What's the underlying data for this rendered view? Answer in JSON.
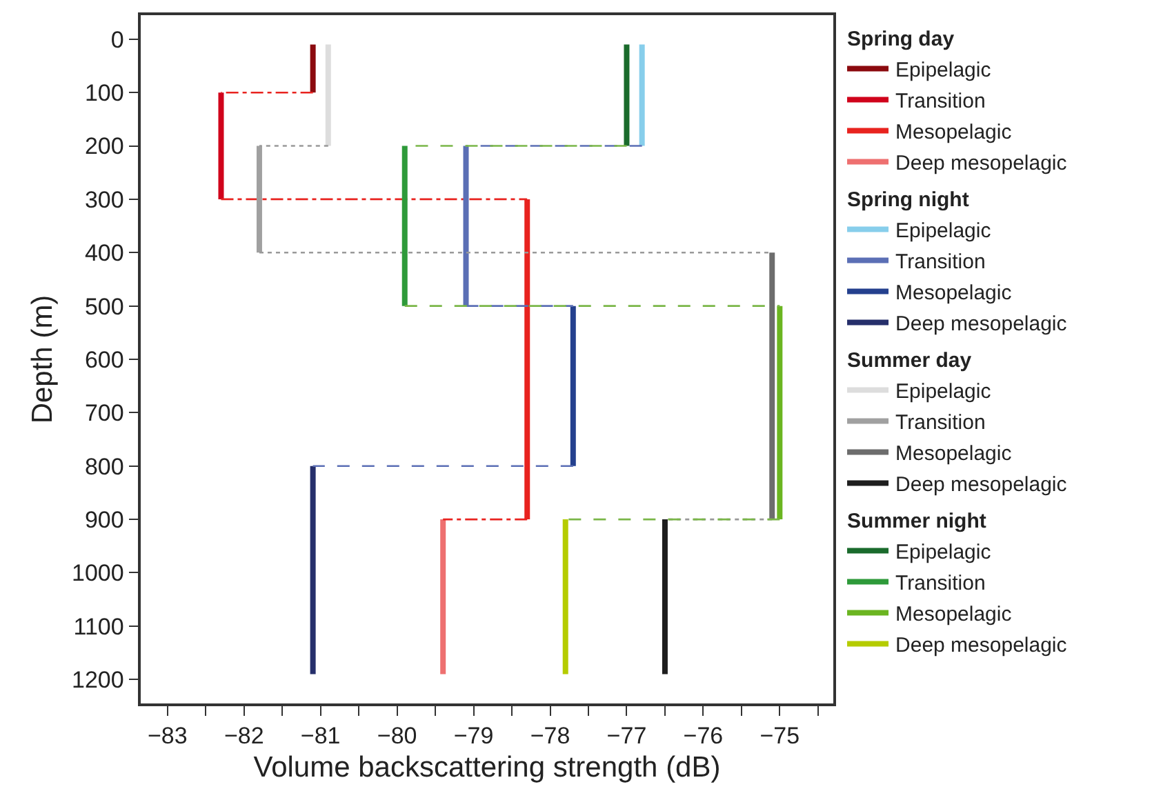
{
  "chart_data": {
    "type": "line",
    "xlabel": "Volume backscattering strength (dB)",
    "ylabel": "Depth (m)",
    "legend_title": [
      "Spring day",
      "Spring night",
      "Summer day",
      "Summer night"
    ],
    "legend": "right",
    "marker": "none",
    "xlim": [
      -83.35,
      -74.3
    ],
    "ylim": [
      1245,
      -45
    ],
    "xticks": [
      {
        "value": -83,
        "label": "−83"
      },
      {
        "value": -82.5,
        "label": null
      },
      {
        "value": -82,
        "label": "−82"
      },
      {
        "value": -81.5,
        "label": null
      },
      {
        "value": -81,
        "label": "−81"
      },
      {
        "value": -80.5,
        "label": null
      },
      {
        "value": -80,
        "label": "−80"
      },
      {
        "value": -79.5,
        "label": null
      },
      {
        "value": -79,
        "label": "−79"
      },
      {
        "value": -78.5,
        "label": null
      },
      {
        "value": -78,
        "label": "−78"
      },
      {
        "value": -77.5,
        "label": null
      },
      {
        "value": -77,
        "label": "−77"
      },
      {
        "value": -76.5,
        "label": null
      },
      {
        "value": -76,
        "label": "−76"
      },
      {
        "value": -75.5,
        "label": null
      },
      {
        "value": -75,
        "label": "−75"
      },
      {
        "value": -74.5,
        "label": null
      }
    ],
    "yticks": [
      0,
      100,
      200,
      300,
      400,
      500,
      600,
      700,
      800,
      900,
      1000,
      1100,
      1200
    ],
    "series": [
      {
        "name": "Epipelagic",
        "color": "#8b0a0f",
        "line_style": "solid",
        "x": [
          -81.1,
          -81.1
        ],
        "values": [
          10,
          100
        ]
      },
      {
        "name": "Transition",
        "color": "#d0021b",
        "line_style": "solid",
        "x": [
          -82.3,
          -82.3
        ],
        "values": [
          100,
          300
        ]
      },
      {
        "name": "Mesopelagic",
        "color": "#e8231f",
        "line_style": "solid",
        "x": [
          -78.3,
          -78.3
        ],
        "values": [
          300,
          900
        ]
      },
      {
        "name": "Deep mesopelagic",
        "color": "#ee7070",
        "line_style": "solid",
        "x": [
          -79.4,
          -79.4
        ],
        "values": [
          900,
          1190
        ]
      },
      {
        "color": "#e8231f",
        "line_style": "dashdot",
        "x": [
          -81.1,
          -82.3
        ],
        "values": [
          100,
          100
        ]
      },
      {
        "color": "#e8231f",
        "line_style": "dashdot",
        "x": [
          -82.3,
          -78.3
        ],
        "values": [
          300,
          300
        ]
      },
      {
        "color": "#e8231f",
        "line_style": "dashdot",
        "x": [
          -78.3,
          -79.4
        ],
        "values": [
          900,
          900
        ]
      },
      {
        "name": "Epipelagic",
        "color": "#87ceeb",
        "line_style": "solid",
        "x": [
          -76.8,
          -76.8
        ],
        "values": [
          10,
          200
        ]
      },
      {
        "name": "Transition",
        "color": "#5b6fb5",
        "line_style": "solid",
        "x": [
          -79.1,
          -79.1
        ],
        "values": [
          200,
          500
        ]
      },
      {
        "name": "Mesopelagic",
        "color": "#24408e",
        "line_style": "solid",
        "x": [
          -77.7,
          -77.7
        ],
        "values": [
          500,
          800
        ]
      },
      {
        "name": "Deep mesopelagic",
        "color": "#262f6b",
        "line_style": "solid",
        "x": [
          -81.1,
          -81.1
        ],
        "values": [
          800,
          1190
        ]
      },
      {
        "color": "#5b6fb5",
        "line_style": "dashed",
        "x": [
          -76.8,
          -79.1
        ],
        "values": [
          200,
          200
        ]
      },
      {
        "color": "#5b6fb5",
        "line_style": "dashed",
        "x": [
          -79.1,
          -77.7
        ],
        "values": [
          500,
          500
        ]
      },
      {
        "color": "#5b6fb5",
        "line_style": "dashed",
        "x": [
          -77.7,
          -81.1
        ],
        "values": [
          800,
          800
        ]
      },
      {
        "name": "Epipelagic",
        "color": "#dddddd",
        "line_style": "solid",
        "x": [
          -80.9,
          -80.9
        ],
        "values": [
          10,
          200
        ]
      },
      {
        "name": "Transition",
        "color": "#a0a0a0",
        "line_style": "solid",
        "x": [
          -81.8,
          -81.8
        ],
        "values": [
          200,
          400
        ]
      },
      {
        "name": "Mesopelagic",
        "color": "#6d6d6d",
        "line_style": "solid",
        "x": [
          -75.1,
          -75.1
        ],
        "values": [
          400,
          900
        ]
      },
      {
        "name": "Deep mesopelagic",
        "color": "#1e1e1e",
        "line_style": "solid",
        "x": [
          -76.5,
          -76.5
        ],
        "values": [
          900,
          1190
        ]
      },
      {
        "color": "#999999",
        "line_style": "dotted",
        "x": [
          -80.9,
          -81.8
        ],
        "values": [
          200,
          200
        ]
      },
      {
        "color": "#999999",
        "line_style": "dotted",
        "x": [
          -81.8,
          -75.1
        ],
        "values": [
          400,
          400
        ]
      },
      {
        "color": "#999999",
        "line_style": "dotted",
        "x": [
          -75.1,
          -76.5
        ],
        "values": [
          900,
          900
        ]
      },
      {
        "name": "Epipelagic",
        "color": "#1a6b2c",
        "line_style": "solid",
        "x": [
          -77.0,
          -77.0
        ],
        "values": [
          10,
          200
        ]
      },
      {
        "name": "Transition",
        "color": "#2e9a3a",
        "line_style": "solid",
        "x": [
          -79.9,
          -79.9
        ],
        "values": [
          200,
          500
        ]
      },
      {
        "name": "Mesopelagic",
        "color": "#6bb521",
        "line_style": "solid",
        "x": [
          -75.0,
          -75.0
        ],
        "values": [
          500,
          900
        ]
      },
      {
        "name": "Deep mesopelagic",
        "color": "#b5cc00",
        "line_style": "solid",
        "x": [
          -77.8,
          -77.8
        ],
        "values": [
          900,
          1190
        ]
      },
      {
        "color": "#7ab648",
        "line_style": "dashed",
        "x": [
          -77.0,
          -79.9
        ],
        "values": [
          200,
          200
        ]
      },
      {
        "color": "#7ab648",
        "line_style": "dashed",
        "x": [
          -79.9,
          -75.0
        ],
        "values": [
          500,
          500
        ]
      },
      {
        "color": "#7ab648",
        "line_style": "dashed",
        "x": [
          -75.0,
          -77.8
        ],
        "values": [
          900,
          900
        ]
      }
    ]
  }
}
